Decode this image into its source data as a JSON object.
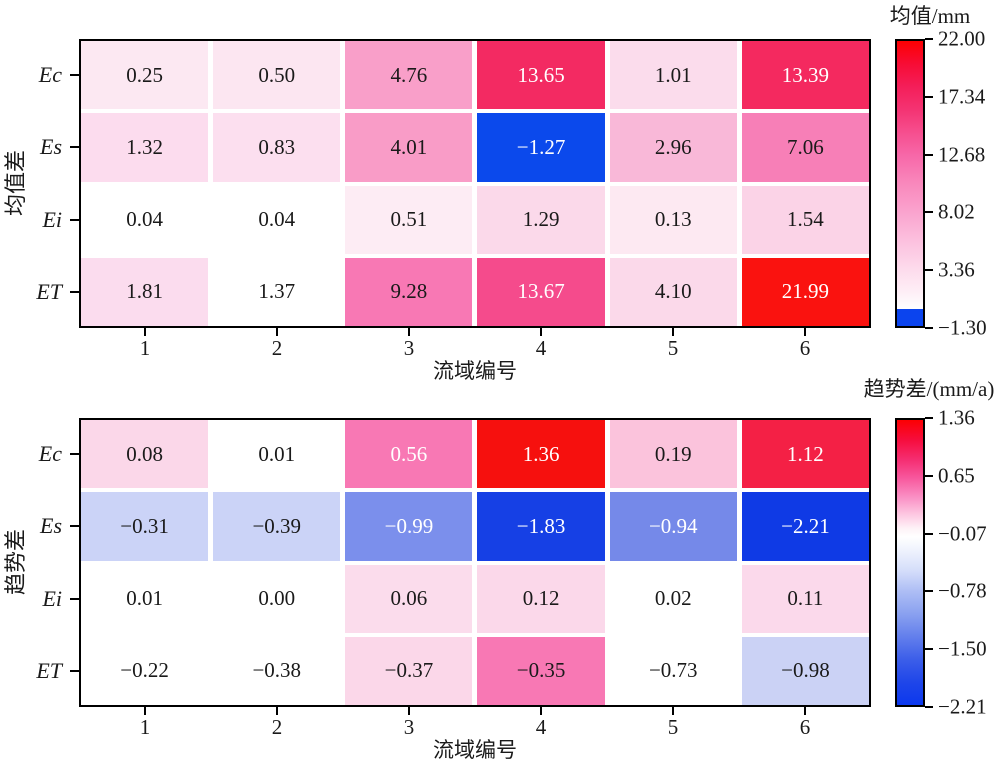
{
  "accent_colors": {
    "max_red": "#fa120f",
    "crimson_pink": "#f32a62",
    "mid_pink": "#f878b4",
    "light_pink": "#fbdcec",
    "strong_blue": "#0b49ec",
    "light_blue": "#cbd3f7",
    "frame": "#000000"
  },
  "chart_data": [
    {
      "type": "heatmap",
      "title": "",
      "ylabel": "均值差",
      "xlabel": "流域编号",
      "rows": [
        "Ec",
        "Es",
        "Ei",
        "ET"
      ],
      "columns": [
        "1",
        "2",
        "3",
        "4",
        "5",
        "6"
      ],
      "values": [
        [
          0.25,
          0.5,
          4.76,
          13.65,
          1.01,
          13.39
        ],
        [
          1.32,
          0.83,
          4.01,
          -1.27,
          2.96,
          7.06
        ],
        [
          0.04,
          0.04,
          0.51,
          1.29,
          0.13,
          1.54
        ],
        [
          1.81,
          1.37,
          9.28,
          13.67,
          4.1,
          21.99
        ]
      ],
      "cell_labels": [
        [
          "0.25",
          "0.50",
          "4.76",
          "13.65",
          "1.01",
          "13.39"
        ],
        [
          "1.32",
          "0.83",
          "4.01",
          "−1.27",
          "2.96",
          "7.06"
        ],
        [
          "0.04",
          "0.04",
          "0.51",
          "1.29",
          "0.13",
          "1.54"
        ],
        [
          "1.81",
          "1.37",
          "9.28",
          "13.67",
          "4.10",
          "21.99"
        ]
      ],
      "cell_colors": [
        [
          "#fce8f2",
          "#fce6f1",
          "#f99fc9",
          "#f32a62",
          "#fbdcec",
          "#f4295f"
        ],
        [
          "#fcdcee",
          "#fcdfef",
          "#f99cc7",
          "#0b49ec",
          "#f9b8d8",
          "#f77fb7"
        ],
        [
          "#ffffff",
          "#ffffff",
          "#fdecf4",
          "#fbd9ea",
          "#fde9f2",
          "#fbd3e7"
        ],
        [
          "#fbdcee",
          "#ffffff",
          "#f878b4",
          "#f54b8c",
          "#fbd9ea",
          "#fa120f"
        ]
      ],
      "cell_text_colors": [
        [
          "#1a1a1a",
          "#1a1a1a",
          "#1a1a1a",
          "#ffffff",
          "#1a1a1a",
          "#ffffff"
        ],
        [
          "#1a1a1a",
          "#1a1a1a",
          "#1a1a1a",
          "#ffffff",
          "#1a1a1a",
          "#1a1a1a"
        ],
        [
          "#1a1a1a",
          "#1a1a1a",
          "#1a1a1a",
          "#1a1a1a",
          "#1a1a1a",
          "#1a1a1a"
        ],
        [
          "#1a1a1a",
          "#1a1a1a",
          "#1a1a1a",
          "#ffffff",
          "#1a1a1a",
          "#ffffff"
        ]
      ],
      "colorbar": {
        "title": "均值/mm",
        "range": [
          22.0,
          -1.3
        ],
        "tick_labels": [
          "22.00",
          "17.34",
          "12.68",
          "8.02",
          "3.36",
          "−1.30"
        ],
        "gradient": [
          {
            "p": "0%",
            "c": "#fd0002"
          },
          {
            "p": "8%",
            "c": "#f70c35"
          },
          {
            "p": "16%",
            "c": "#f41e59"
          },
          {
            "p": "24%",
            "c": "#f43372"
          },
          {
            "p": "32%",
            "c": "#f64e8e"
          },
          {
            "p": "40%",
            "c": "#f767a8"
          },
          {
            "p": "50%",
            "c": "#f988bc"
          },
          {
            "p": "60%",
            "c": "#faa3ce"
          },
          {
            "p": "70%",
            "c": "#fcc0de"
          },
          {
            "p": "80%",
            "c": "#fddbec"
          },
          {
            "p": "88%",
            "c": "#feeef6"
          },
          {
            "p": "94%",
            "c": "#ffffff"
          },
          {
            "p": "94%",
            "c": "#0b44ee"
          },
          {
            "p": "100%",
            "c": "#0b44ee"
          }
        ]
      }
    },
    {
      "type": "heatmap",
      "title": "",
      "ylabel": "趋势差",
      "xlabel": "流域编号",
      "rows": [
        "Ec",
        "Es",
        "Ei",
        "ET"
      ],
      "columns": [
        "1",
        "2",
        "3",
        "4",
        "5",
        "6"
      ],
      "values": [
        [
          0.08,
          0.01,
          0.56,
          1.36,
          0.19,
          1.12
        ],
        [
          -0.31,
          -0.39,
          -0.99,
          -1.83,
          -0.94,
          -2.21
        ],
        [
          0.01,
          0.0,
          0.06,
          0.12,
          0.02,
          0.11
        ],
        [
          -0.22,
          -0.38,
          -0.37,
          -0.35,
          -0.73,
          -0.98
        ]
      ],
      "cell_labels": [
        [
          "0.08",
          "0.01",
          "0.56",
          "1.36",
          "0.19",
          "1.12"
        ],
        [
          "−0.31",
          "−0.39",
          "−0.99",
          "−1.83",
          "−0.94",
          "−2.21"
        ],
        [
          "0.01",
          "0.00",
          "0.06",
          "0.12",
          "0.02",
          "0.11"
        ],
        [
          "−0.22",
          "−0.38",
          "−0.37",
          "−0.35",
          "−0.73",
          "−0.98"
        ]
      ],
      "cell_colors": [
        [
          "#fbd7e9",
          "#ffffff",
          "#f878b4",
          "#f6100e",
          "#fbc3dc",
          "#f42045"
        ],
        [
          "#cbd3f7",
          "#cbd3f7",
          "#7b8fec",
          "#1640e5",
          "#7589e9",
          "#0f3ae5"
        ],
        [
          "#ffffff",
          "#ffffff",
          "#fbdcec",
          "#fbd8ea",
          "#ffffff",
          "#fbd9eb"
        ],
        [
          "#ffffff",
          "#ffffff",
          "#fbd7e9",
          "#f878b4",
          "#ffffff",
          "#cbd2f5"
        ]
      ],
      "cell_text_colors": [
        [
          "#1a1a1a",
          "#1a1a1a",
          "#ffffff",
          "#ffffff",
          "#1a1a1a",
          "#ffffff"
        ],
        [
          "#1a1a1a",
          "#1a1a1a",
          "#ffffff",
          "#ffffff",
          "#ffffff",
          "#ffffff"
        ],
        [
          "#1a1a1a",
          "#1a1a1a",
          "#1a1a1a",
          "#1a1a1a",
          "#1a1a1a",
          "#1a1a1a"
        ],
        [
          "#1a1a1a",
          "#1a1a1a",
          "#1a1a1a",
          "#1a1a1a",
          "#1a1a1a",
          "#1a1a1a"
        ]
      ],
      "colorbar": {
        "title": "趋势差/(mm/a)",
        "range": [
          1.36,
          -2.21
        ],
        "tick_labels": [
          "1.36",
          "0.65",
          "−0.07",
          "−0.78",
          "−1.50",
          "−2.21"
        ],
        "gradient": [
          {
            "p": "0%",
            "c": "#fc0003"
          },
          {
            "p": "7%",
            "c": "#f60d3d"
          },
          {
            "p": "14%",
            "c": "#f52e72"
          },
          {
            "p": "20%",
            "c": "#f7559b"
          },
          {
            "p": "27%",
            "c": "#fa8fc4"
          },
          {
            "p": "33%",
            "c": "#fdc7e1"
          },
          {
            "p": "38%",
            "c": "#fef2f7"
          },
          {
            "p": "41%",
            "c": "#ffffff"
          },
          {
            "p": "46%",
            "c": "#eef2fd"
          },
          {
            "p": "53%",
            "c": "#d4ddfa"
          },
          {
            "p": "60%",
            "c": "#aebef5"
          },
          {
            "p": "68%",
            "c": "#8aa1f0"
          },
          {
            "p": "76%",
            "c": "#637fec"
          },
          {
            "p": "84%",
            "c": "#3c5ee9"
          },
          {
            "p": "92%",
            "c": "#1f46e9"
          },
          {
            "p": "100%",
            "c": "#0c38ee"
          }
        ]
      }
    }
  ]
}
